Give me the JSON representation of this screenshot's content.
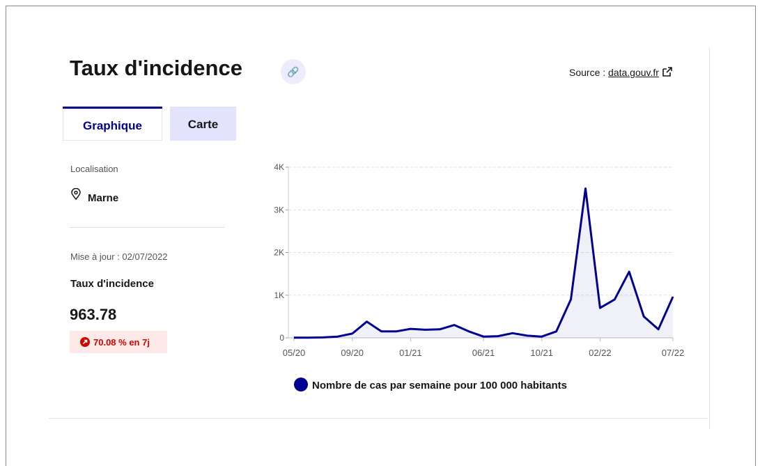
{
  "header": {
    "title": "Taux d'incidence",
    "source_label": "Source :",
    "source_link": "data.gouv.fr"
  },
  "tabs": [
    "Graphique",
    "Carte"
  ],
  "sidebar": {
    "location_label": "Localisation",
    "location": "Marne",
    "update": "Mise à jour : 02/07/2022",
    "indicator": "Taux d'incidence",
    "value": "963.78",
    "change": "70.08 % en 7j"
  },
  "chart_data": {
    "type": "line",
    "x": [
      "2020-05",
      "2020-06",
      "2020-07",
      "2020-08",
      "2020-09",
      "2020-10",
      "2020-11",
      "2020-12",
      "2021-01",
      "2021-02",
      "2021-03",
      "2021-04",
      "2021-05",
      "2021-06",
      "2021-07",
      "2021-08",
      "2021-09",
      "2021-10",
      "2021-11",
      "2021-12",
      "2022-01",
      "2022-02",
      "2022-03",
      "2022-04",
      "2022-05",
      "2022-06",
      "2022-07"
    ],
    "series": [
      {
        "name": "Nombre de cas par semaine pour 100 000 habitants",
        "color": "#000091",
        "values": [
          5,
          5,
          10,
          30,
          100,
          380,
          150,
          150,
          210,
          190,
          200,
          300,
          150,
          30,
          40,
          110,
          50,
          30,
          150,
          900,
          3500,
          700,
          900,
          1550,
          500,
          200,
          964
        ]
      }
    ],
    "ylim": [
      0,
      4000
    ],
    "yticks": [
      0,
      {
        "value": 1000,
        "label": "1K"
      },
      {
        "value": 2000,
        "label": "2K"
      },
      {
        "value": 3000,
        "label": "3K"
      },
      {
        "value": 4000,
        "label": "4K"
      }
    ],
    "xticks": [
      {
        "value": "2020-05",
        "label": "05/20"
      },
      {
        "value": "2020-09",
        "label": "09/20"
      },
      {
        "value": "2021-01",
        "label": "01/21"
      },
      {
        "value": "2021-06",
        "label": "06/21"
      },
      {
        "value": "2021-10",
        "label": "10/21"
      },
      {
        "value": "2022-02",
        "label": "02/22"
      },
      {
        "value": "2022-07",
        "label": "07/22"
      }
    ],
    "grid": true
  }
}
